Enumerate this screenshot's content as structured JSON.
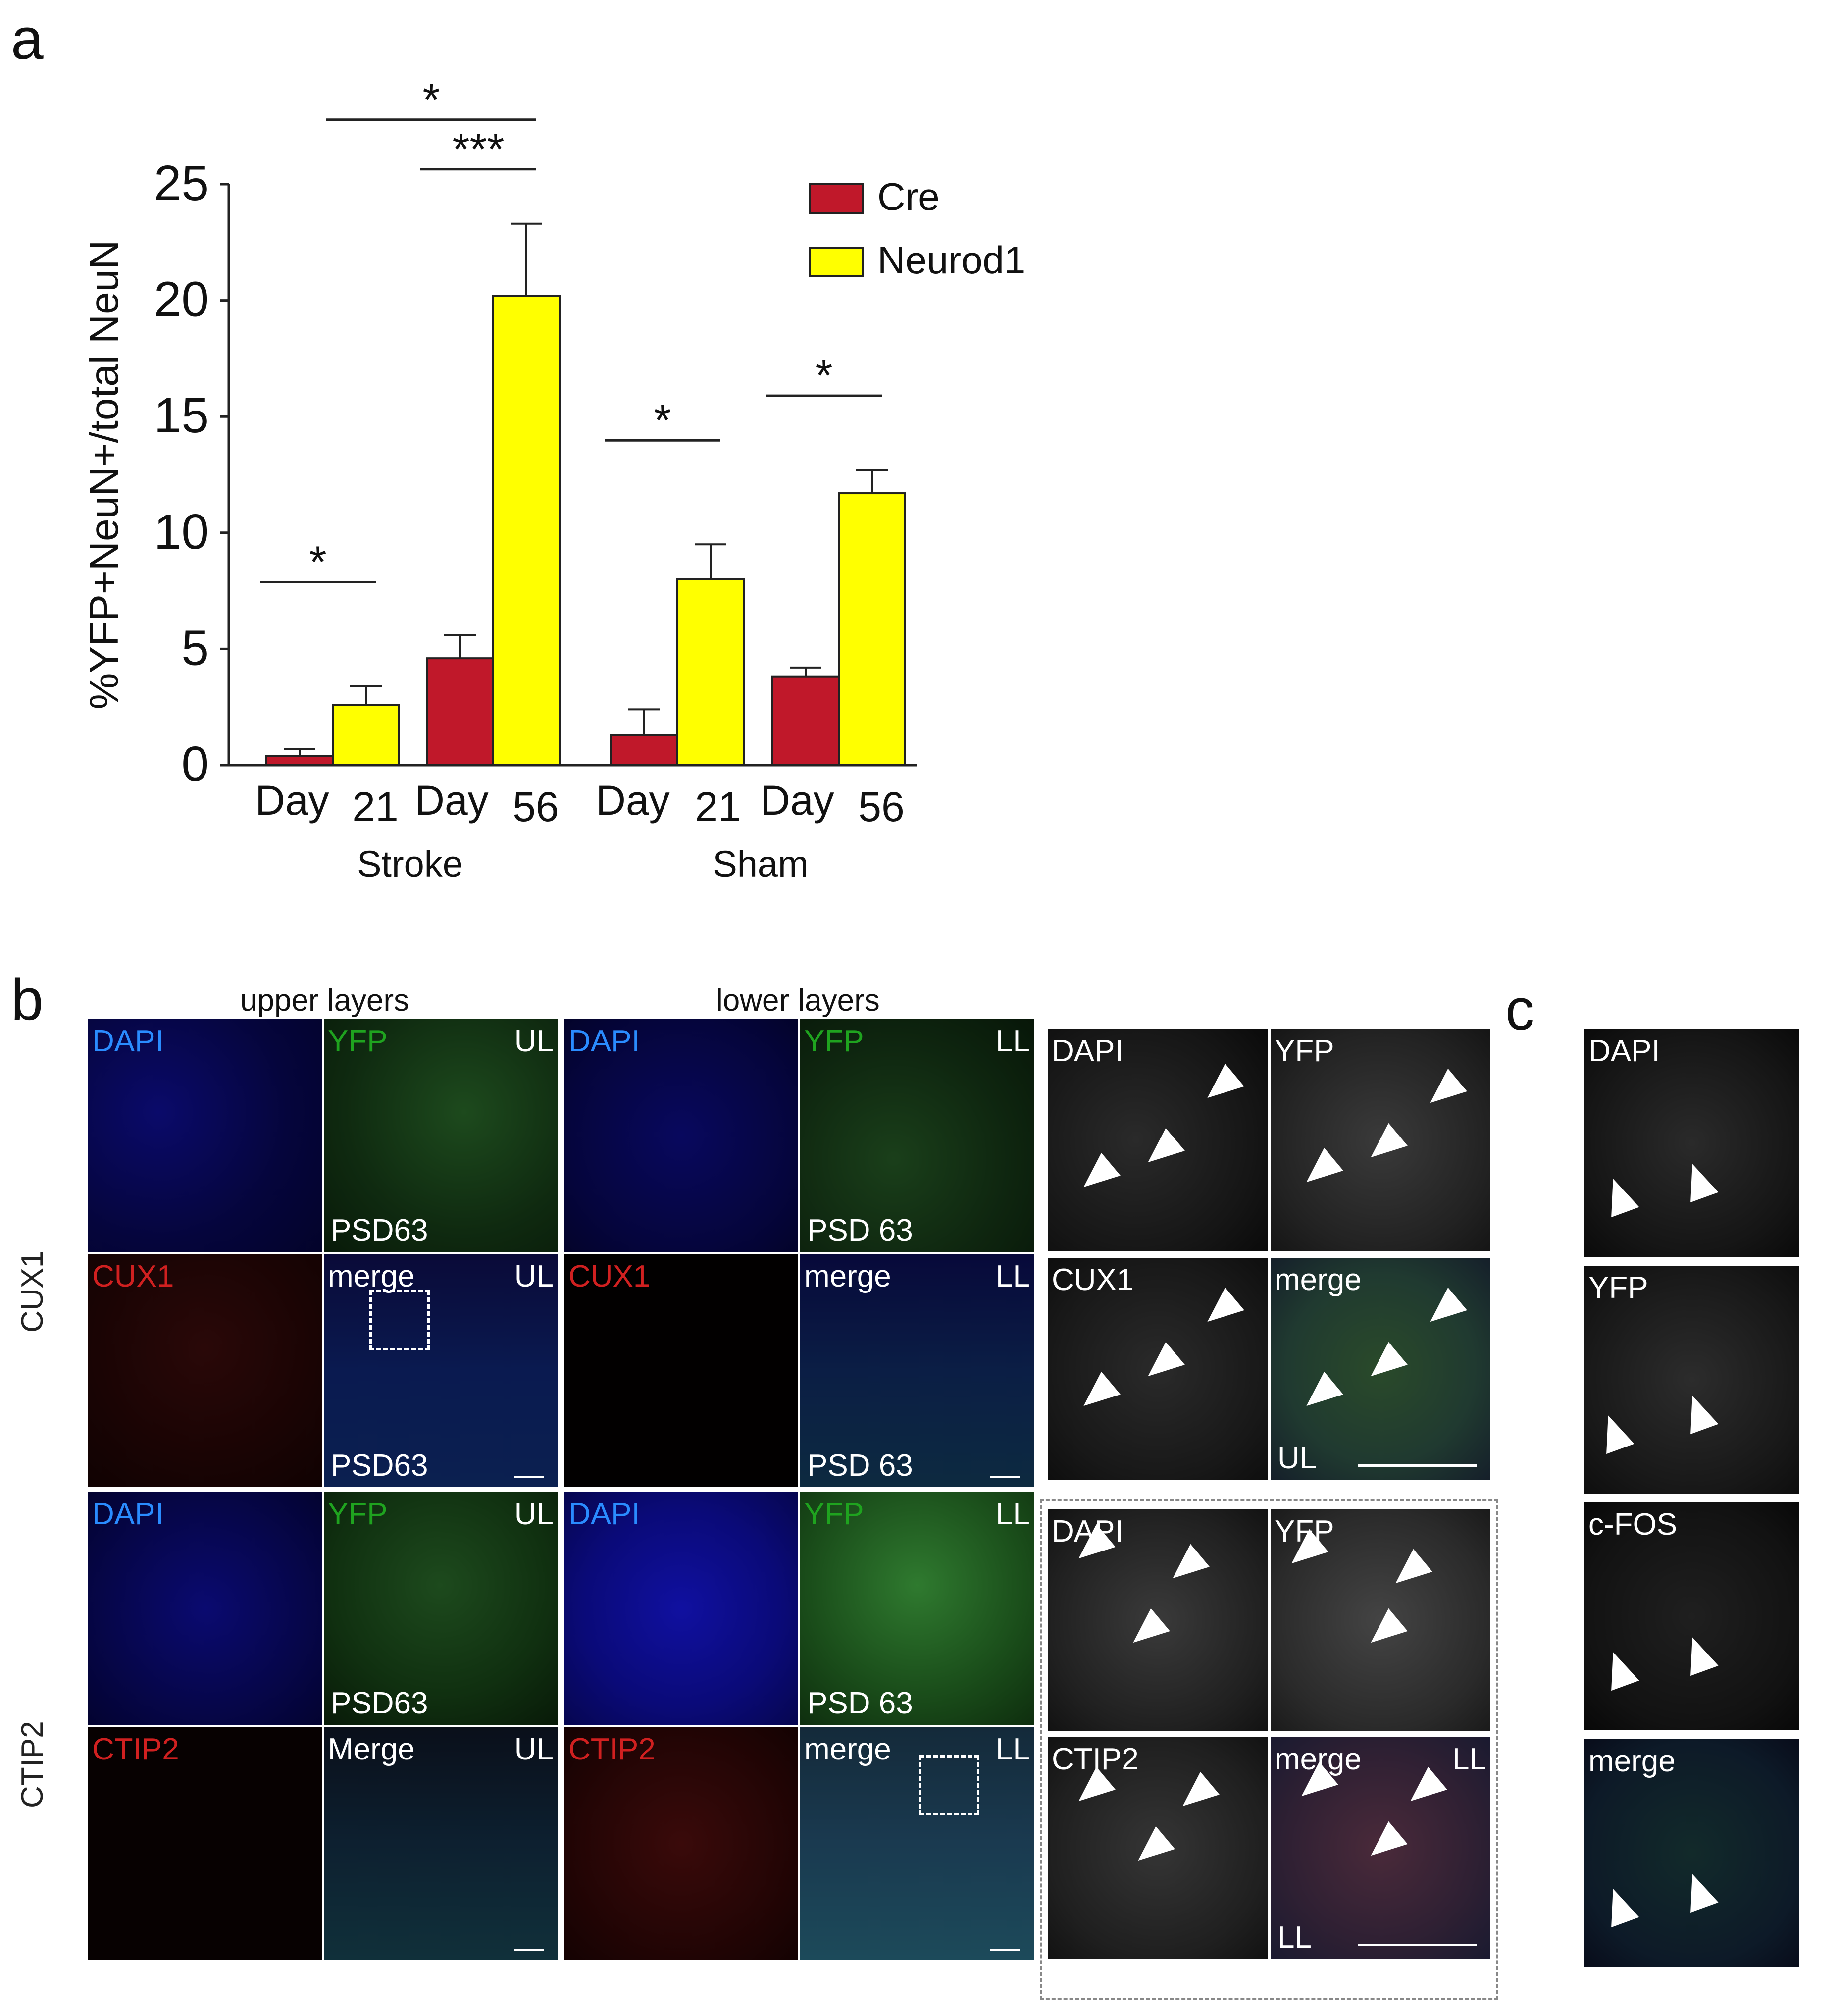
{
  "panel_letters": {
    "a": "a",
    "b": "b",
    "c": "c"
  },
  "chart_data": {
    "type": "bar",
    "title": "",
    "xlabel": "",
    "ylabel": "%YFP+NeuN+/total NeuN",
    "ylim": [
      0,
      25
    ],
    "yticks": [
      "0",
      "5",
      "10",
      "15",
      "20",
      "25"
    ],
    "groups": [
      "Stroke",
      "Sham"
    ],
    "subgroups": [
      "Day",
      "21",
      "Day",
      "56",
      "Day",
      "21",
      "Day",
      "56"
    ],
    "categories": [
      "Stroke Day 21",
      "Stroke Day 56",
      "Sham Day 21",
      "Sham Day 56"
    ],
    "series": [
      {
        "name": "Cre",
        "color": "#c0182a",
        "values": [
          0.4,
          4.6,
          1.3,
          3.8
        ],
        "errors": [
          0.3,
          1.0,
          1.1,
          0.4
        ]
      },
      {
        "name": "Neurod1",
        "color": "#ffff00",
        "values": [
          2.6,
          20.2,
          8.0,
          11.7
        ],
        "errors": [
          0.8,
          3.1,
          1.5,
          1.0
        ]
      }
    ],
    "significance": [
      "*",
      "***",
      "*",
      "*",
      "*"
    ],
    "legend_position": "top-right",
    "grid": false
  },
  "panel_b": {
    "titles": {
      "upper": "upper layers",
      "lower": "lower layers"
    },
    "row_labels": {
      "cux1": "CUX1",
      "ctip2": "CTIP2"
    },
    "tiles": {
      "cux1_ul_dapi": "DAPI",
      "cux1_ul_yfp": "YFP",
      "cux1_ul_yfp_tag": "UL",
      "cux1_ul_yfp_age": "PSD63",
      "cux1_ll_dapi": "DAPI",
      "cux1_ll_yfp": "YFP",
      "cux1_ll_yfp_tag": "LL",
      "cux1_ll_yfp_age": "PSD 63",
      "cux1_ul_marker": "CUX1",
      "cux1_ul_merge": "merge",
      "cux1_ul_merge_tag": "UL",
      "cux1_ul_merge_age": "PSD63",
      "cux1_ll_marker": "CUX1",
      "cux1_ll_merge": "merge",
      "cux1_ll_merge_tag": "LL",
      "cux1_ll_merge_age": "PSD 63",
      "ctip2_ul_dapi": "DAPI",
      "ctip2_ul_yfp": "YFP",
      "ctip2_ul_yfp_tag": "UL",
      "ctip2_ul_yfp_age": "PSD63",
      "ctip2_ll_dapi": "DAPI",
      "ctip2_ll_yfp": "YFP",
      "ctip2_ll_yfp_tag": "LL",
      "ctip2_ll_yfp_age": "PSD 63",
      "ctip2_ul_marker": "CTIP2",
      "ctip2_ul_merge": "Merge",
      "ctip2_ul_merge_tag": "UL",
      "ctip2_ll_marker": "CTIP2",
      "ctip2_ll_merge": "merge",
      "ctip2_ll_merge_tag": "LL"
    },
    "zoom": {
      "cux1_dapi": "DAPI",
      "cux1_yfp": "YFP",
      "cux1_marker": "CUX1",
      "cux1_merge": "merge",
      "cux1_tag": "UL",
      "ctip2_dapi": "DAPI",
      "ctip2_yfp": "YFP",
      "ctip2_marker": "CTIP2",
      "ctip2_merge": "merge",
      "ctip2_tag_top": "LL",
      "ctip2_tag_bottom": "LL"
    }
  },
  "panel_c": {
    "labels": [
      "DAPI",
      "YFP",
      "c-FOS",
      "merge"
    ]
  },
  "colors": {
    "dapi": "#2a8cff",
    "yfp": "#1fa31f",
    "marker": "#d02020",
    "white": "#ffffff"
  }
}
